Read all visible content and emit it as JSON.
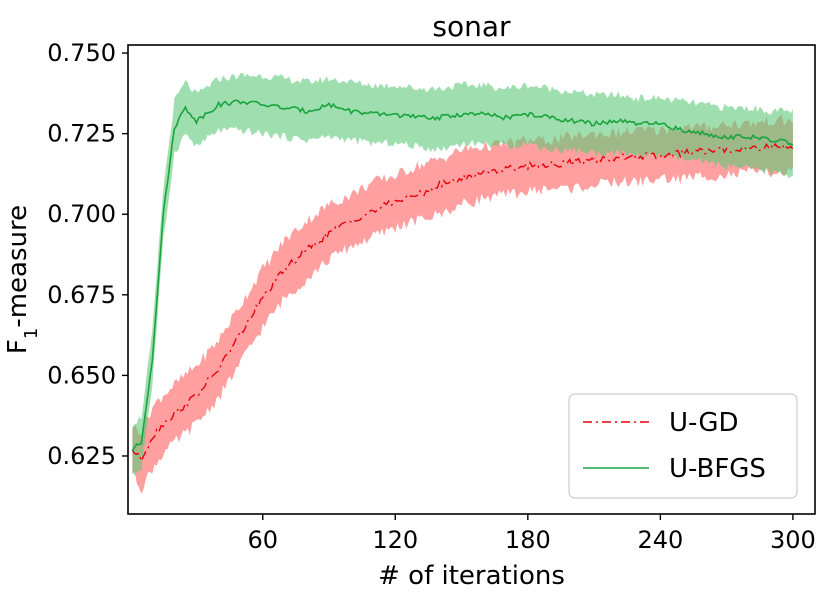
{
  "chart_data": {
    "type": "line",
    "title": "sonar",
    "xlabel": "# of iterations",
    "ylabel_main": "F",
    "ylabel_sub": "1",
    "ylabel_rest": "-measure",
    "xlim": [
      -1,
      310
    ],
    "ylim": [
      0.607,
      0.7525
    ],
    "xticks": [
      60,
      120,
      180,
      240,
      300
    ],
    "xtick_labels": [
      "60",
      "120",
      "180",
      "240",
      "300"
    ],
    "yticks": [
      0.625,
      0.65,
      0.675,
      0.7,
      0.725,
      0.75
    ],
    "ytick_labels": [
      "0.625",
      "0.650",
      "0.675",
      "0.700",
      "0.725",
      "0.750"
    ],
    "grid": false,
    "legend_position": "lower-right",
    "x": [
      1,
      5,
      10,
      15,
      20,
      25,
      30,
      40,
      50,
      60,
      70,
      80,
      90,
      100,
      110,
      120,
      130,
      140,
      150,
      160,
      170,
      180,
      190,
      200,
      210,
      220,
      230,
      240,
      250,
      260,
      270,
      280,
      290,
      300
    ],
    "series": [
      {
        "name": "U-GD",
        "color": "#e8000b",
        "line_style": "dashdot",
        "values": [
          0.627,
          0.624,
          0.631,
          0.635,
          0.638,
          0.641,
          0.644,
          0.652,
          0.663,
          0.674,
          0.683,
          0.689,
          0.694,
          0.698,
          0.701,
          0.704,
          0.706,
          0.709,
          0.711,
          0.713,
          0.714,
          0.715,
          0.7155,
          0.716,
          0.717,
          0.7175,
          0.718,
          0.718,
          0.719,
          0.7195,
          0.72,
          0.7205,
          0.721,
          0.721
        ],
        "lower": [
          0.62,
          0.615,
          0.621,
          0.626,
          0.629,
          0.632,
          0.635,
          0.643,
          0.654,
          0.665,
          0.674,
          0.68,
          0.686,
          0.69,
          0.693,
          0.696,
          0.698,
          0.7,
          0.703,
          0.705,
          0.706,
          0.707,
          0.708,
          0.708,
          0.709,
          0.71,
          0.71,
          0.711,
          0.711,
          0.712,
          0.712,
          0.713,
          0.713,
          0.713
        ],
        "upper": [
          0.634,
          0.633,
          0.64,
          0.644,
          0.647,
          0.65,
          0.653,
          0.661,
          0.672,
          0.683,
          0.692,
          0.698,
          0.703,
          0.706,
          0.71,
          0.712,
          0.715,
          0.717,
          0.72,
          0.721,
          0.722,
          0.723,
          0.723,
          0.724,
          0.725,
          0.725,
          0.726,
          0.726,
          0.727,
          0.727,
          0.728,
          0.728,
          0.729,
          0.729
        ]
      },
      {
        "name": "U-BFGS",
        "color": "#1aa33f",
        "line_style": "solid",
        "values": [
          0.627,
          0.629,
          0.655,
          0.7,
          0.727,
          0.733,
          0.729,
          0.734,
          0.735,
          0.734,
          0.733,
          0.732,
          0.734,
          0.732,
          0.731,
          0.731,
          0.73,
          0.73,
          0.731,
          0.731,
          0.73,
          0.731,
          0.73,
          0.729,
          0.728,
          0.729,
          0.728,
          0.728,
          0.726,
          0.725,
          0.724,
          0.724,
          0.723,
          0.722
        ],
        "lower": [
          0.619,
          0.621,
          0.647,
          0.692,
          0.719,
          0.725,
          0.721,
          0.726,
          0.726,
          0.725,
          0.724,
          0.723,
          0.724,
          0.723,
          0.722,
          0.722,
          0.721,
          0.72,
          0.722,
          0.722,
          0.721,
          0.722,
          0.72,
          0.72,
          0.719,
          0.719,
          0.718,
          0.718,
          0.717,
          0.716,
          0.715,
          0.714,
          0.713,
          0.712
        ],
        "upper": [
          0.635,
          0.637,
          0.663,
          0.708,
          0.735,
          0.741,
          0.737,
          0.742,
          0.743,
          0.743,
          0.742,
          0.741,
          0.742,
          0.741,
          0.74,
          0.74,
          0.739,
          0.739,
          0.74,
          0.74,
          0.739,
          0.74,
          0.739,
          0.738,
          0.737,
          0.737,
          0.736,
          0.736,
          0.735,
          0.734,
          0.733,
          0.733,
          0.732,
          0.732
        ]
      }
    ]
  }
}
